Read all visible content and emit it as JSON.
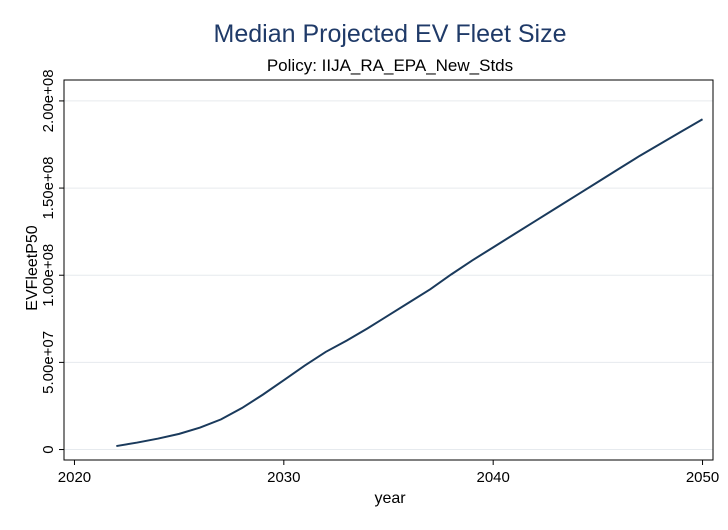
{
  "chart_data": {
    "type": "line",
    "title": "Median Projected EV Fleet Size",
    "subtitle": "Policy: IIJA_RA_EPA_New_Stds",
    "xlabel": "year",
    "ylabel": "EVFleetP50",
    "xlim": [
      2019.5,
      2050.5
    ],
    "ylim": [
      -6000000,
      212000000
    ],
    "xticks": [
      2020,
      2030,
      2040,
      2050
    ],
    "xtick_labels": [
      "2020",
      "2030",
      "2040",
      "2050"
    ],
    "yticks": [
      0,
      50000000,
      100000000,
      150000000,
      200000000
    ],
    "ytick_labels": [
      "0",
      "5.00e+07",
      "1.00e+08",
      "1.50e+08",
      "2.00e+08"
    ],
    "grid": true,
    "legend": "none",
    "colors": {
      "line": "#1a3a5c",
      "title": "#1f3a68",
      "grid": "#e6eaee"
    },
    "series": [
      {
        "x": [
          2022,
          2023,
          2024,
          2025,
          2026,
          2027,
          2028,
          2029,
          2030,
          2031,
          2032,
          2033,
          2034,
          2035,
          2036,
          2037,
          2038,
          2039,
          2040,
          2041,
          2042,
          2043,
          2044,
          2045,
          2046,
          2047,
          2048,
          2049,
          2050
        ],
        "values": [
          2000000,
          4000000,
          6300000,
          9000000,
          12600000,
          17300000,
          23800000,
          31500000,
          39800000,
          48200000,
          56000000,
          62500000,
          69500000,
          77000000,
          84500000,
          92000000,
          100500000,
          108500000,
          116000000,
          123500000,
          131000000,
          138500000,
          146000000,
          153500000,
          161000000,
          168500000,
          175500000,
          182500000,
          189500000
        ]
      }
    ]
  }
}
